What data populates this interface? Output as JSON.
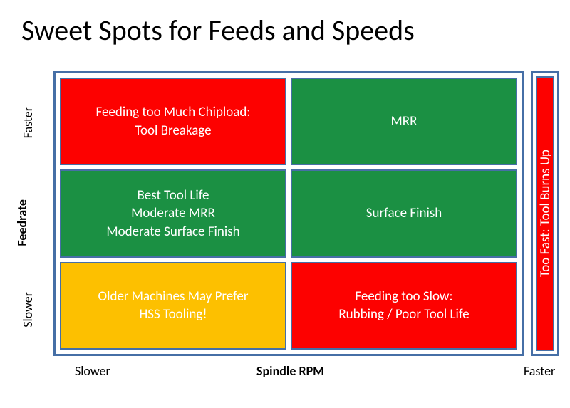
{
  "title": "Sweet Spots for Feeds and Speeds",
  "colors": {
    "red": "#fd0100",
    "green": "#1b9043",
    "amber": "#fdc000",
    "border": "#466fa6",
    "text_on_cell": "#ffffff",
    "background": "#ffffff"
  },
  "axes": {
    "y": {
      "label": "Feedrate",
      "low": "Slower",
      "high": "Faster"
    },
    "x": {
      "label": "Spindle RPM",
      "low": "Slower",
      "high": "Faster"
    }
  },
  "grid": {
    "rows": 3,
    "cols": 2,
    "cells": [
      {
        "row": 0,
        "col": 0,
        "color": "#fd0100",
        "text": "Feeding too Much Chipload:\nTool Breakage"
      },
      {
        "row": 0,
        "col": 1,
        "color": "#1b9043",
        "text": "MRR"
      },
      {
        "row": 1,
        "col": 0,
        "color": "#1b9043",
        "text": "Best Tool Life\nModerate MRR\nModerate Surface Finish"
      },
      {
        "row": 1,
        "col": 1,
        "color": "#1b9043",
        "text": "Surface Finish"
      },
      {
        "row": 2,
        "col": 0,
        "color": "#fdc000",
        "text": "Older Machines May Prefer\nHSS Tooling!"
      },
      {
        "row": 2,
        "col": 1,
        "color": "#fd0100",
        "text": "Feeding too Slow:\nRubbing / Poor Tool Life"
      }
    ]
  },
  "side_column": {
    "color": "#fd0100",
    "text": "Too Fast: Tool Burns Up"
  },
  "typography": {
    "title_fontsize": 40,
    "cell_fontsize": 19,
    "axis_label_fontsize": 18,
    "font_family": "Calibri"
  }
}
